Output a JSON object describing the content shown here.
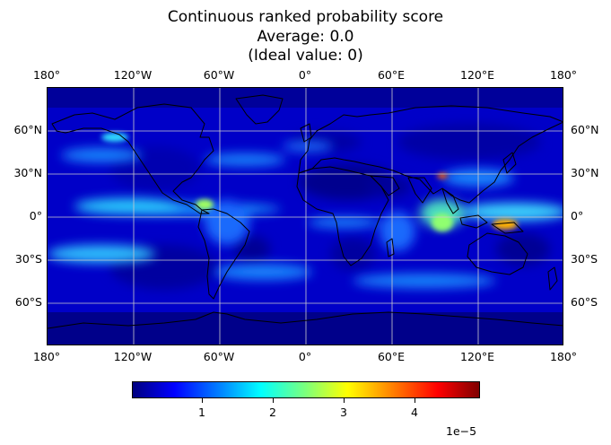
{
  "title": {
    "line1": "Continuous ranked probability score",
    "line2": "Average: 0.0",
    "line3": "(Ideal value: 0)"
  },
  "axes": {
    "lon_labels": [
      "180°",
      "120°W",
      "60°W",
      "0°",
      "60°E",
      "120°E",
      "180°"
    ],
    "lat_labels": [
      "60°N",
      "30°N",
      "0°",
      "30°S",
      "60°S"
    ],
    "grid": true
  },
  "colorbar": {
    "colormap": "jet",
    "tick_labels": [
      "1",
      "2",
      "3",
      "4"
    ],
    "tick_values": [
      1,
      2,
      3,
      4
    ],
    "range": [
      0,
      4.9
    ],
    "exponent_label": "1e−5"
  },
  "colors": {
    "ocean_low": "#0000c8",
    "deep_low": "#00007f",
    "grid": "#cccccc",
    "coast": "#000000"
  }
}
